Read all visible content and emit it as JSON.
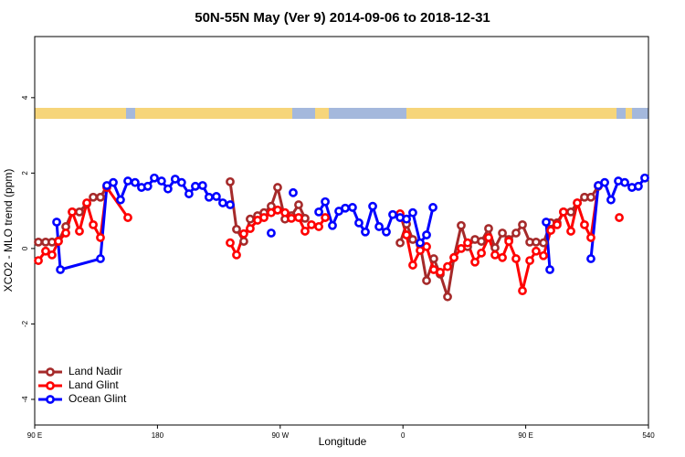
{
  "chart_data": {
    "type": "line",
    "title": "50N-55N May (Ver 9)   2014-09-06 to 2018-12-31",
    "x_label": "Longitude",
    "y_label": "XCO2 - MLO trend (ppm)",
    "xlim": [
      90,
      540
    ],
    "ylim": [
      -4.68,
      5.62
    ],
    "xticks": [
      {
        "value": 90,
        "label": "90 E"
      },
      180,
      {
        "value": 270,
        "label": "90 W"
      },
      {
        "value": 360,
        "label": "0"
      },
      {
        "value": 450,
        "label": "90 E"
      },
      540
    ],
    "yticks": [
      4,
      2,
      0,
      -2,
      -4
    ],
    "legend": "bottom-left",
    "series": [
      {
        "name": "Land Nadir",
        "color": "#a52a2a",
        "x": [
          92.7,
          98,
          102.7,
          107.4,
          112.8,
          117.5,
          122.8,
          128.2,
          132.9,
          138.2,
          142.9,
          null,
          233.3,
          238,
          243.3,
          248,
          253.4,
          258.1,
          263.4,
          268.1,
          273.5,
          278.2,
          283.5,
          288.2,
          null,
          357.9,
          362.6,
          367.2,
          372.6,
          377.3,
          382.6,
          387.3,
          392.7,
          397.4,
          402.7,
          407.4,
          412.8,
          417.5,
          422.8,
          427.5,
          432.9,
          437.6,
          442.9,
          447.6,
          453,
          457.6,
          463,
          468.4,
          473,
          477.7,
          483.1,
          487.8,
          493.1,
          497.8,
          503.2
        ],
        "values": [
          0.17,
          0.17,
          0.17,
          0.2,
          0.58,
          0.97,
          0.97,
          1.19,
          1.36,
          1.36,
          1.65,
          null,
          1.77,
          0.51,
          0.19,
          0.78,
          0.87,
          0.95,
          1.12,
          1.62,
          0.78,
          0.87,
          1.16,
          0.8,
          null,
          0.15,
          0.65,
          0.24,
          0.1,
          -0.85,
          -0.27,
          -0.68,
          -1.28,
          -0.24,
          0.61,
          0.05,
          0.24,
          0.19,
          0.53,
          0.02,
          0.41,
          0.24,
          0.41,
          0.63,
          0.17,
          0.17,
          0.15,
          0.68,
          0.68,
          0.97,
          0.97,
          1.21,
          1.36,
          1.36,
          1.65
        ]
      },
      {
        "name": "Land Glint",
        "color": "#ff0000",
        "x": [
          92.7,
          98,
          102.7,
          107.4,
          112.8,
          117.5,
          122.8,
          128.2,
          132.9,
          138.2,
          142.9,
          158.3,
          null,
          233.3,
          238,
          243.3,
          248,
          253.4,
          258.1,
          263.4,
          268.1,
          273.5,
          278.2,
          283.5,
          288.2,
          292.9,
          298.3,
          303,
          null,
          357.9,
          362.6,
          367.2,
          372.6,
          377.3,
          382.6,
          387.3,
          392.7,
          397.4,
          402.7,
          407.4,
          412.8,
          417.5,
          422.8,
          427.5,
          432.9,
          437.6,
          442.9,
          447.6,
          453,
          457.6,
          463,
          468.4,
          473,
          477.7,
          483.1,
          487.8,
          493.1,
          497.8,
          503.2,
          null,
          518.6
        ],
        "values": [
          -0.32,
          -0.07,
          -0.17,
          0.19,
          0.41,
          0.97,
          0.46,
          1.21,
          0.63,
          0.29,
          1.62,
          0.82,
          null,
          0.15,
          -0.17,
          0.39,
          0.53,
          0.75,
          0.82,
          0.95,
          1.02,
          0.95,
          0.8,
          0.82,
          0.46,
          0.63,
          0.58,
          0.82,
          null,
          0.92,
          0.36,
          -0.44,
          -0.05,
          0.05,
          -0.56,
          -0.63,
          -0.48,
          -0.24,
          0,
          0.15,
          -0.36,
          -0.12,
          0.29,
          -0.17,
          -0.24,
          0.19,
          -0.27,
          -1.12,
          -0.32,
          -0.07,
          -0.19,
          0.48,
          0.63,
          0.97,
          0.46,
          1.21,
          0.63,
          0.29,
          1.67,
          null,
          0.82
        ]
      },
      {
        "name": "Ocean Glint",
        "color": "#0000ff",
        "x": [
          106.1,
          108.8,
          138.2,
          142.9,
          147.6,
          152.9,
          158.3,
          163.6,
          168.3,
          172.9,
          177.7,
          183,
          187.7,
          193,
          197.7,
          203.1,
          207.8,
          213.1,
          217.8,
          223.2,
          227.9,
          233.3,
          null,
          263.4,
          null,
          279.5,
          null,
          298.3,
          303,
          308.3,
          313,
          317.7,
          323,
          327.7,
          332.4,
          337.8,
          342.5,
          347.8,
          352.5,
          357.9,
          362.6,
          367.2,
          372.6,
          377.3,
          382,
          null,
          465,
          467.7,
          null,
          497.8,
          503.2,
          507.9,
          512.5,
          517.9,
          522.6,
          527.9,
          532.6,
          537.3
        ],
        "values": [
          0.7,
          -0.56,
          -0.27,
          1.67,
          1.75,
          1.29,
          1.79,
          1.75,
          1.62,
          1.65,
          1.87,
          1.79,
          1.58,
          1.84,
          1.75,
          1.45,
          1.65,
          1.67,
          1.36,
          1.38,
          1.21,
          1.16,
          null,
          0.41,
          null,
          1.48,
          null,
          0.97,
          1.24,
          0.61,
          0.99,
          1.07,
          1.09,
          0.68,
          0.44,
          1.12,
          0.58,
          0.44,
          0.9,
          0.82,
          0.78,
          0.95,
          0.15,
          0.36,
          1.09,
          null,
          0.7,
          -0.56,
          null,
          -0.27,
          1.67,
          1.75,
          1.29,
          1.79,
          1.75,
          1.62,
          1.65,
          1.87
        ]
      }
    ]
  }
}
